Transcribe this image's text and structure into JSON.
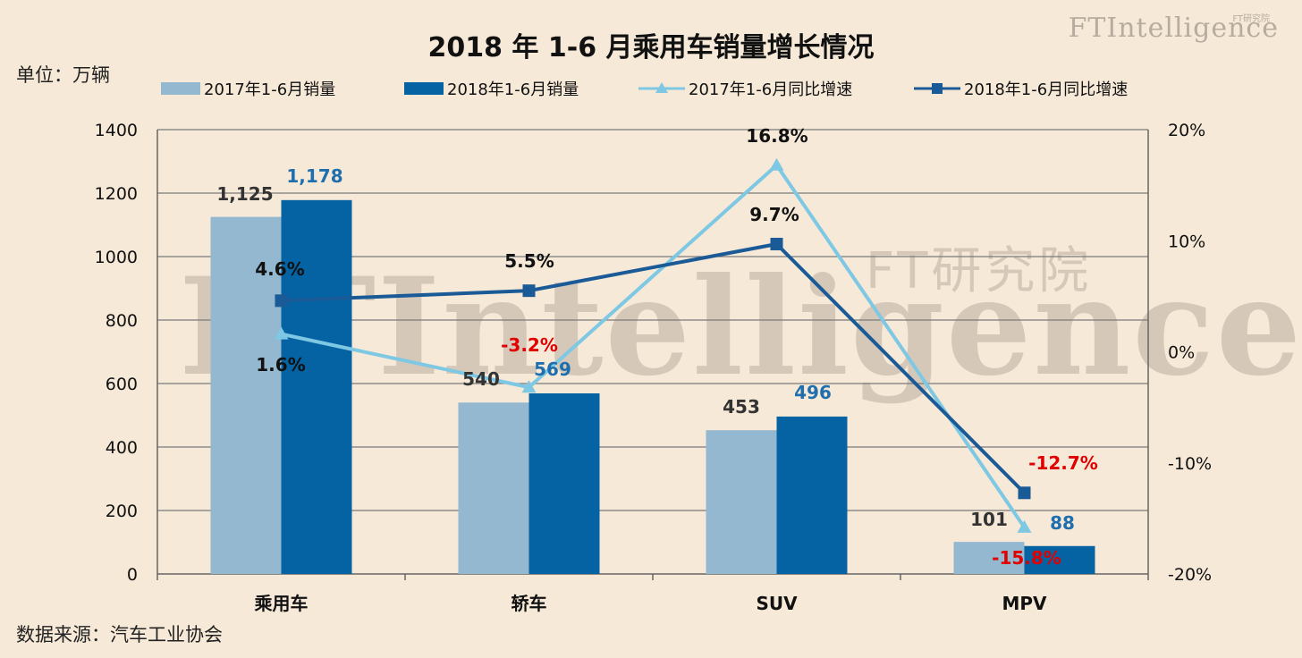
{
  "title": "2018 年 1-6 月乘用车销量增长情况",
  "unit_label": "单位：万辆",
  "source_label": "数据来源：汽车工业协会",
  "brand": {
    "main": "FTIntelligence",
    "small": "FT研究院",
    "watermark_main": "FTIntelligence",
    "watermark_small": "FT研究院"
  },
  "colors": {
    "bar_2017": "#93b8cf",
    "bar_2018": "#0563a3",
    "line_2017": "#7ec8e4",
    "line_2018": "#1a5a96",
    "label_2018_value": "#1f6fae",
    "negative": "#e00000",
    "axis": "#666666",
    "grid": "#7a7a7a"
  },
  "chart_data": {
    "type": "bar",
    "title": "2018 年 1-6 月乘用车销量增长情况",
    "categories": [
      "乘用车",
      "轿车",
      "SUV",
      "MPV"
    ],
    "series": [
      {
        "name": "2017年1-6月销量",
        "type": "bar",
        "axis": "left",
        "values": [
          1125,
          540,
          453,
          101
        ],
        "labels": [
          "1,125",
          "540",
          "453",
          "101"
        ]
      },
      {
        "name": "2018年1-6月销量",
        "type": "bar",
        "axis": "left",
        "values": [
          1178,
          569,
          496,
          88
        ],
        "labels": [
          "1,178",
          "569",
          "496",
          "88"
        ]
      },
      {
        "name": "2017年1-6月同比增速",
        "type": "line",
        "axis": "right",
        "marker": "triangle",
        "values": [
          1.6,
          -3.2,
          16.8,
          -15.8
        ],
        "labels": [
          "1.6%",
          "-3.2%",
          "16.8%",
          "-15.8%"
        ]
      },
      {
        "name": "2018年1-6月同比增速",
        "type": "line",
        "axis": "right",
        "marker": "square",
        "values": [
          4.6,
          5.5,
          9.7,
          -12.7
        ],
        "labels": [
          "4.6%",
          "5.5%",
          "9.7%",
          "-12.7%"
        ]
      }
    ],
    "y_left": {
      "ylim": [
        0,
        1400
      ],
      "ticks": [
        0,
        200,
        400,
        600,
        800,
        1000,
        1200,
        1400
      ],
      "tick_labels": [
        "0",
        "200",
        "400",
        "600",
        "800",
        "1000",
        "1200",
        "1400"
      ]
    },
    "y_right": {
      "ylim": [
        -20,
        20
      ],
      "ticks": [
        -20,
        -10,
        0,
        10,
        20
      ],
      "tick_labels": [
        "-20%",
        "-10%",
        "0%",
        "10%",
        "20%"
      ]
    },
    "grid": true,
    "legend_position": "top"
  }
}
